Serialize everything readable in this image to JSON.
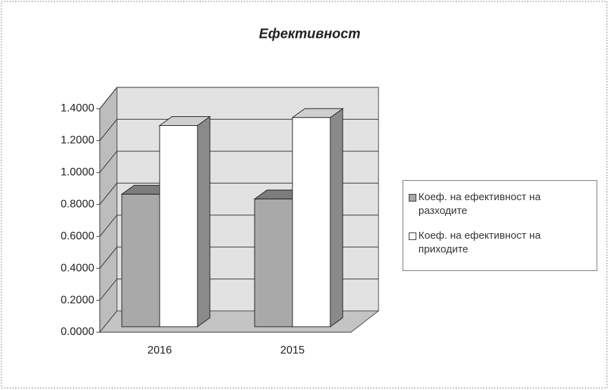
{
  "chart_data": {
    "type": "bar3d",
    "title": "Ефективност",
    "categories": [
      "2016",
      "2015"
    ],
    "series": [
      {
        "name": "Коеф. на ефективност на разходите",
        "color": "#a9a9a9",
        "values": [
          0.83,
          0.8
        ]
      },
      {
        "name": "Коеф. на ефективност на приходите",
        "color": "#ffffff",
        "values": [
          1.26,
          1.31
        ]
      }
    ],
    "ylim": [
      0,
      1.4
    ],
    "yticks": [
      {
        "value": 0,
        "label": "0.0000"
      },
      {
        "value": 0.2,
        "label": "0.2000"
      },
      {
        "value": 0.4,
        "label": "0.4000"
      },
      {
        "value": 0.6,
        "label": "0.6000"
      },
      {
        "value": 0.8,
        "label": "0.8000"
      },
      {
        "value": 1,
        "label": "1.0000"
      },
      {
        "value": 1.2,
        "label": "1.2000"
      },
      {
        "value": 1.4,
        "label": "1.4000"
      }
    ],
    "grid": true,
    "legend": "right"
  }
}
